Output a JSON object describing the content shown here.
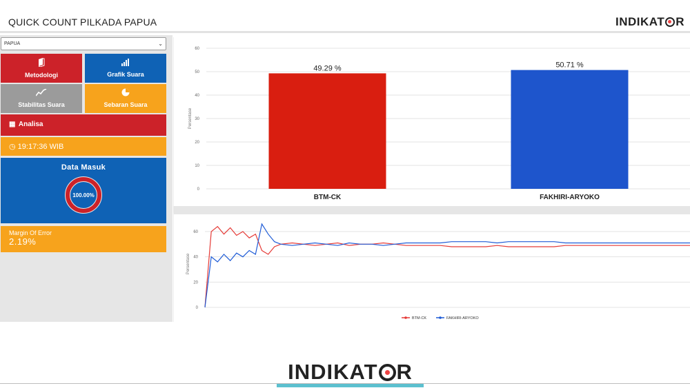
{
  "header": {
    "title": "QUICK COUNT PILKADA PAPUA",
    "brand_before": "INDIKAT",
    "brand_after": "R"
  },
  "sidebar": {
    "region_select": {
      "selected": "PAPUA"
    },
    "tiles": {
      "metodologi": "Metodologi",
      "grafik_suara": "Grafik Suara",
      "stabilitas_suara": "Stabilitas Suara",
      "sebaran_suara": "Sebaran Suara"
    },
    "analisa": "Analisa",
    "clock": "19:17:36 WIB",
    "data_masuk": {
      "title": "Data Masuk",
      "percent_label": "100.00%",
      "percent": 100
    },
    "margin_of_error": {
      "label": "Margin Of Error",
      "value": "2.19%"
    }
  },
  "colors": {
    "red": "#cc2229",
    "blue": "#0f62b5",
    "orange": "#f7a31c",
    "gray": "#9b9b9b",
    "bar_red": "#d91e10",
    "bar_blue": "#1e55cc",
    "line_red": "#e53935",
    "line_blue": "#1e5bd6"
  },
  "icons": {
    "metodologi": "book-icon",
    "grafik": "bar-chart-icon",
    "stabilitas": "line-chart-icon",
    "sebaran": "pie-chart-icon",
    "analisa": "analysis-icon",
    "clock": "clock-icon"
  },
  "chart_data": [
    {
      "type": "bar",
      "categories": [
        "BTM-CK",
        "FAKHIRI-ARYOKO"
      ],
      "values": [
        49.29,
        50.71
      ],
      "data_labels": [
        "49.29 %",
        "50.71 %"
      ],
      "ylabel": "Persentase",
      "ylim": [
        0,
        60
      ],
      "yticks": [
        0,
        10,
        20,
        30,
        40,
        50,
        60
      ],
      "grid": true,
      "colors": [
        "#d91e10",
        "#1e55cc"
      ]
    },
    {
      "type": "line",
      "ylabel": "Persentase",
      "ylim": [
        0,
        60
      ],
      "yticks": [
        0,
        20,
        40,
        60
      ],
      "grid": true,
      "legend": "bottom",
      "series": [
        {
          "name": "BTM-CK",
          "color": "#e53935",
          "values": [
            0,
            60,
            64,
            58,
            63,
            57,
            60,
            55,
            58,
            45,
            42,
            48,
            50,
            51,
            50,
            49,
            50,
            51,
            49,
            50,
            50,
            51,
            50,
            49,
            49,
            49,
            49,
            48,
            48,
            48,
            48,
            49,
            48,
            48,
            48,
            48,
            48,
            49,
            49,
            49,
            49,
            49,
            49,
            49,
            49,
            49,
            49,
            49,
            49
          ]
        },
        {
          "name": "FAKHIRI-ARYOKO",
          "color": "#1e5bd6",
          "values": [
            0,
            40,
            36,
            42,
            37,
            43,
            40,
            45,
            42,
            66,
            58,
            52,
            50,
            49,
            50,
            51,
            50,
            49,
            51,
            50,
            50,
            49,
            50,
            51,
            51,
            51,
            51,
            52,
            52,
            52,
            52,
            51,
            52,
            52,
            52,
            52,
            52,
            51,
            51,
            51,
            51,
            51,
            51,
            51,
            51,
            51,
            51,
            51,
            51
          ]
        }
      ]
    }
  ],
  "footer": {
    "brand_before": "INDIKAT",
    "brand_after": "R"
  }
}
